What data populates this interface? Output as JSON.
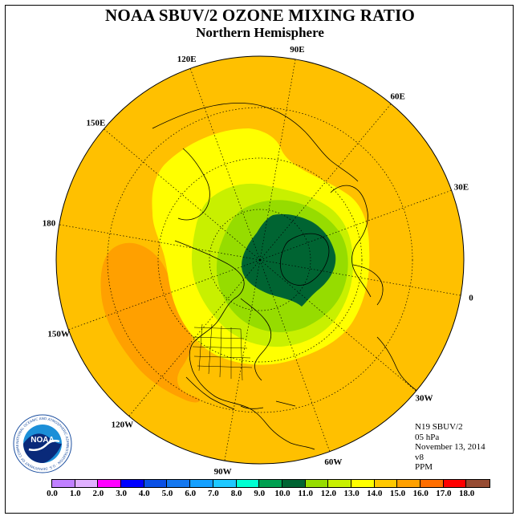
{
  "title": "NOAA SBUV/2 OZONE MIXING RATIO",
  "subtitle": "Northern Hemisphere",
  "longitude_labels": [
    {
      "text": "90E"
    },
    {
      "text": "60E"
    },
    {
      "text": "30E"
    },
    {
      "text": "0"
    },
    {
      "text": "30W"
    },
    {
      "text": "60W"
    },
    {
      "text": "90W"
    },
    {
      "text": "120W"
    },
    {
      "text": "150W"
    },
    {
      "text": "180"
    },
    {
      "text": "150E"
    },
    {
      "text": "120E"
    }
  ],
  "info": {
    "instrument": "N19 SBUV/2",
    "level": "05 hPa",
    "date": "November 13, 2014",
    "version": "v8",
    "units": "PPM"
  },
  "colorbar": {
    "ticks": [
      "0.0",
      "1.0",
      "2.0",
      "3.0",
      "4.0",
      "5.0",
      "6.0",
      "7.0",
      "8.0",
      "9.0",
      "10.0",
      "11.0",
      "12.0",
      "13.0",
      "14.0",
      "15.0",
      "16.0",
      "17.0",
      "18.0"
    ],
    "colors": [
      "#c080ff",
      "#e0b0ff",
      "#ff00ff",
      "#0000ff",
      "#0a50e6",
      "#1478f0",
      "#14a0ff",
      "#1ec8ff",
      "#00ffd2",
      "#00a050",
      "#006432",
      "#96dc00",
      "#c8f000",
      "#ffff00",
      "#ffc800",
      "#ffa000",
      "#ff6e00",
      "#ff0000",
      "#964b32"
    ]
  },
  "colors": {
    "background_ocean": "#ffc000",
    "level_14": "#ffa000",
    "level_13": "#ffff00",
    "level_12": "#c8f000",
    "level_11": "#96dc00",
    "level_10": "#006432"
  },
  "logo": {
    "text": "NOAA",
    "ring_text": "NATIONAL OCEANIC AND ATMOSPHERIC ADMINISTRATION · U.S. DEPARTMENT OF COMMERCE"
  }
}
